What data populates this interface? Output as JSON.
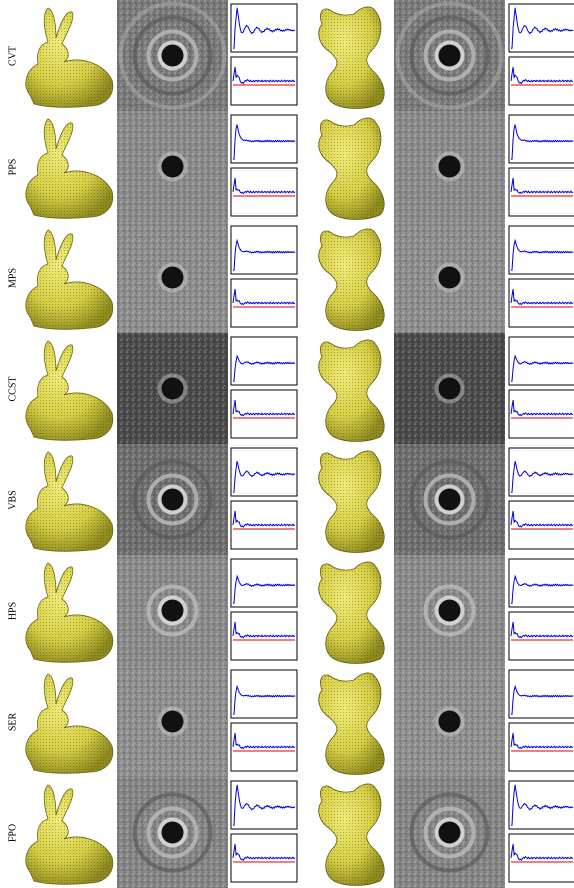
{
  "rows": [
    {
      "label": "CVT"
    },
    {
      "label": "PPS"
    },
    {
      "label": "MPS"
    },
    {
      "label": "CCST"
    },
    {
      "label": "VBS"
    },
    {
      "label": "HPS"
    },
    {
      "label": "SER"
    },
    {
      "label": "FPO"
    }
  ]
}
